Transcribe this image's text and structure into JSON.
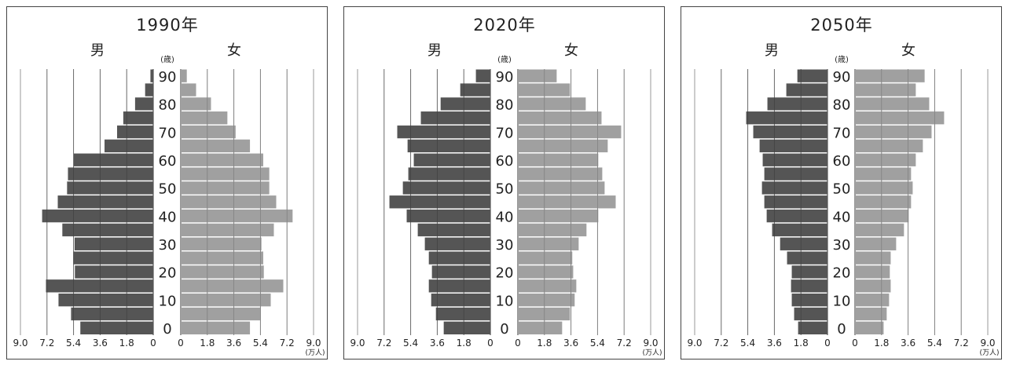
{
  "colors": {
    "male": "#555555",
    "female": "#a0a0a0",
    "grid": "#999999",
    "axis": "#333333"
  },
  "chart_data": [
    {
      "type": "bar",
      "title": "1990年",
      "male_label": "男",
      "female_label": "女",
      "age_unit": "(歳)",
      "value_unit": "(万人)",
      "age_groups": [
        "0",
        "5",
        "10",
        "15",
        "20",
        "25",
        "30",
        "35",
        "40",
        "45",
        "50",
        "55",
        "60",
        "65",
        "70",
        "75",
        "80",
        "85",
        "90"
      ],
      "age_tick_labels": [
        "0",
        "10",
        "20",
        "30",
        "40",
        "50",
        "60",
        "70",
        "80",
        "90"
      ],
      "x_ticks": [
        "9.0",
        "7.2",
        "5.4",
        "3.6",
        "1.8",
        "0"
      ],
      "x_ticks_right": [
        "0",
        "1.8",
        "3.6",
        "5.4",
        "7.2",
        "9.0"
      ],
      "xlim": [
        0,
        9.0
      ],
      "series": [
        {
          "name": "男",
          "values": [
            4.94,
            5.57,
            6.42,
            7.27,
            5.31,
            5.41,
            5.33,
            6.16,
            7.53,
            6.47,
            5.84,
            5.78,
            5.38,
            3.3,
            2.45,
            2.03,
            1.23,
            0.55,
            0.19
          ]
        },
        {
          "name": "女",
          "values": [
            4.69,
            5.41,
            6.1,
            6.95,
            5.63,
            5.59,
            5.47,
            6.31,
            7.58,
            6.47,
            6.0,
            6.0,
            5.59,
            4.69,
            3.72,
            3.16,
            2.05,
            1.04,
            0.41
          ]
        }
      ]
    },
    {
      "type": "bar",
      "title": "2020年",
      "male_label": "男",
      "female_label": "女",
      "age_unit": "(歳)",
      "value_unit": "(万人)",
      "age_groups": [
        "0",
        "5",
        "10",
        "15",
        "20",
        "25",
        "30",
        "35",
        "40",
        "45",
        "50",
        "55",
        "60",
        "65",
        "70",
        "75",
        "80",
        "85",
        "90"
      ],
      "age_tick_labels": [
        "0",
        "10",
        "20",
        "30",
        "40",
        "50",
        "60",
        "70",
        "80",
        "90"
      ],
      "x_ticks": [
        "9.0",
        "7.2",
        "5.4",
        "3.6",
        "1.8",
        "0"
      ],
      "x_ticks_right": [
        "0",
        "1.8",
        "3.6",
        "5.4",
        "7.2",
        "9.0"
      ],
      "xlim": [
        0,
        9.0
      ],
      "series": [
        {
          "name": "男",
          "values": [
            3.16,
            3.69,
            4.01,
            4.17,
            3.96,
            4.17,
            4.44,
            4.92,
            5.67,
            6.84,
            5.93,
            5.56,
            5.19,
            5.61,
            6.31,
            4.71,
            3.37,
            2.04,
            0.98
          ]
        },
        {
          "name": "女",
          "values": [
            3.0,
            3.53,
            3.85,
            3.96,
            3.75,
            3.69,
            4.12,
            4.65,
            5.45,
            6.63,
            5.88,
            5.72,
            5.45,
            6.09,
            7.0,
            5.67,
            4.6,
            3.53,
            2.63
          ]
        }
      ]
    },
    {
      "type": "bar",
      "title": "2050年",
      "male_label": "男",
      "female_label": "女",
      "age_unit": "(歳)",
      "value_unit": "(万人)",
      "age_groups": [
        "0",
        "5",
        "10",
        "15",
        "20",
        "25",
        "30",
        "35",
        "40",
        "45",
        "50",
        "55",
        "60",
        "65",
        "70",
        "75",
        "80",
        "85",
        "90"
      ],
      "age_tick_labels": [
        "0",
        "10",
        "20",
        "30",
        "40",
        "50",
        "60",
        "70",
        "80",
        "90"
      ],
      "x_ticks": [
        "9.0",
        "7.2",
        "5.4",
        "3.6",
        "1.8",
        "0"
      ],
      "x_ticks_right": [
        "0",
        "1.8",
        "3.6",
        "5.4",
        "7.2",
        "9.0"
      ],
      "xlim": [
        0,
        9.0
      ],
      "series": [
        {
          "name": "男",
          "values": [
            1.99,
            2.26,
            2.42,
            2.47,
            2.42,
            2.74,
            3.21,
            3.75,
            4.12,
            4.28,
            4.44,
            4.28,
            4.39,
            4.6,
            5.03,
            5.51,
            4.07,
            2.79,
            2.04
          ]
        },
        {
          "name": "女",
          "values": [
            1.94,
            2.15,
            2.31,
            2.42,
            2.36,
            2.42,
            2.79,
            3.32,
            3.64,
            3.8,
            3.91,
            3.8,
            4.12,
            4.6,
            5.19,
            6.04,
            5.03,
            4.12,
            4.72
          ]
        }
      ]
    }
  ]
}
